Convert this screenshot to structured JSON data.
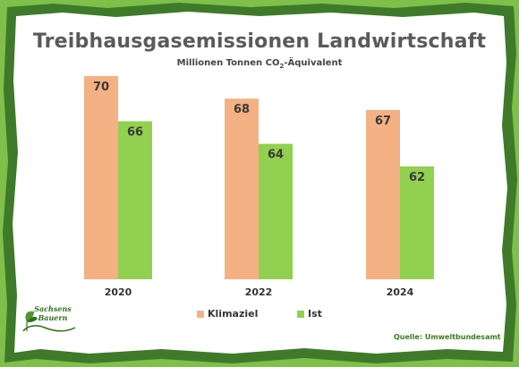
{
  "colors": {
    "background_green": "#7fbf4a",
    "frame_dark_green": "#3f7a2a",
    "card": "#ffffff",
    "klimaziel": "#f4b183",
    "ist": "#92d050",
    "title": "#5a5a5a",
    "source": "#3a7a1e"
  },
  "header": {
    "title": "Treibhausgasemissionen Landwirtschaft",
    "subtitle_prefix": "Millionen Tonnen CO",
    "subtitle_sub": "2",
    "subtitle_suffix": "-Äquivalent"
  },
  "chart_data": {
    "type": "bar",
    "categories": [
      "2020",
      "2022",
      "2024"
    ],
    "series": [
      {
        "name": "Klimaziel",
        "values": [
          70,
          68,
          67
        ],
        "color": "#f4b183"
      },
      {
        "name": "Ist",
        "values": [
          66,
          64,
          62
        ],
        "color": "#92d050"
      }
    ],
    "title": "Treibhausgasemissionen Landwirtschaft",
    "subtitle": "Millionen Tonnen CO2-Äquivalent",
    "xlabel": "",
    "ylabel": "",
    "data_labels": true,
    "grid": false,
    "legend_position": "bottom-center"
  },
  "legend": {
    "items": [
      {
        "label": "Klimaziel",
        "color": "#f4b183"
      },
      {
        "label": "Ist",
        "color": "#92d050"
      }
    ]
  },
  "footer": {
    "source": "Quelle: Umweltbundesamt",
    "logo_line1": "Sachsens",
    "logo_line2": "Bauern",
    "logo_icon": "leaf-sprout-icon"
  }
}
